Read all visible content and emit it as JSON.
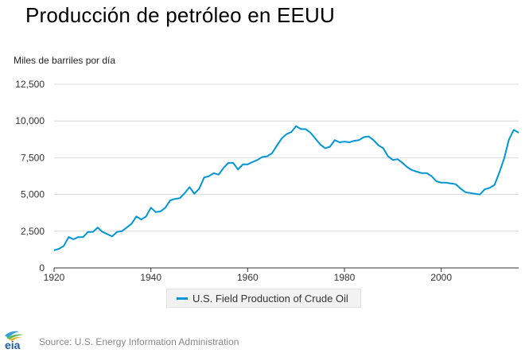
{
  "chart_data": {
    "type": "line",
    "title": "Producción de petróleo en EEUU",
    "ylabel": "Miles de barriles por día",
    "xlabel": "",
    "xlim": [
      1920,
      2016
    ],
    "ylim": [
      0,
      12500
    ],
    "x_ticks": [
      1920,
      1940,
      1960,
      1980,
      2000
    ],
    "y_ticks": [
      0,
      2500,
      5000,
      7500,
      10000,
      12500
    ],
    "y_tick_labels": [
      "0",
      "2,500",
      "5,000",
      "7,500",
      "10,000",
      "12,500"
    ],
    "grid": "horizontal",
    "legend_position": "bottom",
    "series": [
      {
        "name": "U.S. Field Production of Crude Oil",
        "color": "#0096d7",
        "x": [
          1920,
          1921,
          1922,
          1923,
          1924,
          1925,
          1926,
          1927,
          1928,
          1929,
          1930,
          1931,
          1932,
          1933,
          1934,
          1935,
          1936,
          1937,
          1938,
          1939,
          1940,
          1941,
          1942,
          1943,
          1944,
          1945,
          1946,
          1947,
          1948,
          1949,
          1950,
          1951,
          1952,
          1953,
          1954,
          1955,
          1956,
          1957,
          1958,
          1959,
          1960,
          1961,
          1962,
          1963,
          1964,
          1965,
          1966,
          1967,
          1968,
          1969,
          1970,
          1971,
          1972,
          1973,
          1974,
          1975,
          1976,
          1977,
          1978,
          1979,
          1980,
          1981,
          1982,
          1983,
          1984,
          1985,
          1986,
          1987,
          1988,
          1989,
          1990,
          1991,
          1992,
          1993,
          1994,
          1995,
          1996,
          1997,
          1998,
          1999,
          2000,
          2001,
          2002,
          2003,
          2004,
          2005,
          2006,
          2007,
          2008,
          2009,
          2010,
          2011,
          2012,
          2013,
          2014,
          2015,
          2016
        ],
        "values": [
          1200,
          1300,
          1500,
          2100,
          1950,
          2100,
          2100,
          2450,
          2450,
          2750,
          2450,
          2300,
          2150,
          2450,
          2500,
          2750,
          3000,
          3500,
          3300,
          3500,
          4100,
          3800,
          3850,
          4100,
          4600,
          4700,
          4750,
          5100,
          5500,
          5050,
          5400,
          6150,
          6250,
          6450,
          6350,
          6800,
          7150,
          7150,
          6700,
          7050,
          7050,
          7200,
          7350,
          7550,
          7600,
          7800,
          8300,
          8800,
          9100,
          9250,
          9650,
          9450,
          9450,
          9200,
          8800,
          8400,
          8150,
          8250,
          8700,
          8550,
          8600,
          8550,
          8650,
          8700,
          8900,
          8950,
          8700,
          8350,
          8150,
          7600,
          7350,
          7400,
          7150,
          6850,
          6650,
          6550,
          6450,
          6450,
          6250,
          5900,
          5800,
          5800,
          5750,
          5700,
          5400,
          5150,
          5100,
          5050,
          5000,
          5350,
          5450,
          5650,
          6500,
          7450,
          8750,
          9400,
          9200
        ]
      }
    ]
  },
  "legend": {
    "label": "U.S. Field Production of Crude Oil"
  },
  "footer": {
    "source": "Source: U.S. Energy Information Administration",
    "logo_text": "eia"
  },
  "colors": {
    "line": "#0096d7",
    "grid": "#d9d9d9",
    "axis": "#333333",
    "tick_text": "#333333",
    "source_text": "#888888"
  }
}
